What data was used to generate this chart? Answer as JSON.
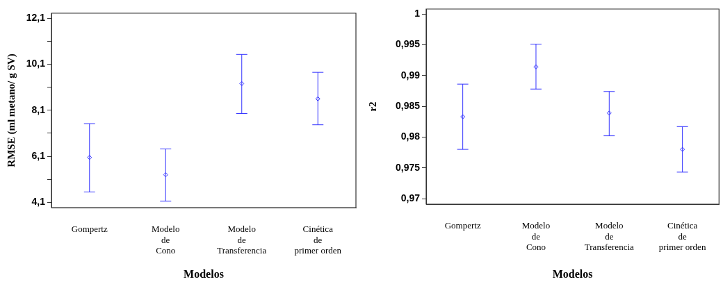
{
  "chart_data": [
    {
      "type": "scatter",
      "xlabel": "Modelos",
      "ylabel": "RMSE (ml metano/ g SV)",
      "categories": [
        "Gompertz",
        "Modelo\nde\nCono",
        "Modelo\nde\nTransferencia",
        "Cinética\nde\nprimer orden"
      ],
      "series": [
        {
          "color": "#3333ff",
          "values": [
            6.05,
            5.3,
            9.26,
            8.6
          ],
          "errors": [
            [
              4.55,
              7.52
            ],
            [
              4.15,
              6.42
            ],
            [
              7.96,
              10.53
            ],
            [
              7.47,
              9.75
            ]
          ]
        }
      ],
      "ylim": [
        3.87,
        12.32
      ],
      "yticks": [
        {
          "value": 4.1,
          "label": "4,1"
        },
        {
          "value": 5.1,
          "label": null
        },
        {
          "value": 6.1,
          "label": "6,1"
        },
        {
          "value": 7.1,
          "label": null
        },
        {
          "value": 8.1,
          "label": "8,1"
        },
        {
          "value": 9.1,
          "label": null
        },
        {
          "value": 10.1,
          "label": "10,1"
        },
        {
          "value": 11.1,
          "label": null
        },
        {
          "value": 12.1,
          "label": "12,1"
        }
      ],
      "marker": "diamond",
      "grid": false
    },
    {
      "type": "scatter",
      "xlabel": "Modelos",
      "ylabel": "r2",
      "categories": [
        "Gompertz",
        "Modelo\nde\nCono",
        "Modelo\nde\nTransferencia",
        "Cinética\nde\nprimer orden"
      ],
      "series": [
        {
          "color": "#3333ff",
          "values": [
            0.9833,
            0.9914,
            0.9839,
            0.978
          ],
          "errors": [
            [
              0.978,
              0.9886
            ],
            [
              0.9878,
              0.9951
            ],
            [
              0.9802,
              0.9874
            ],
            [
              0.9743,
              0.9817
            ]
          ]
        }
      ],
      "ylim": [
        0.9691,
        1.0008
      ],
      "yticks": [
        {
          "value": 0.97,
          "label": "0,97"
        },
        {
          "value": 0.975,
          "label": "0,975"
        },
        {
          "value": 0.98,
          "label": "0,98"
        },
        {
          "value": 0.985,
          "label": "0,985"
        },
        {
          "value": 0.99,
          "label": "0,99"
        },
        {
          "value": 0.995,
          "label": "0,995"
        },
        {
          "value": 1,
          "label": "1"
        }
      ],
      "marker": "diamond",
      "grid": false
    }
  ]
}
